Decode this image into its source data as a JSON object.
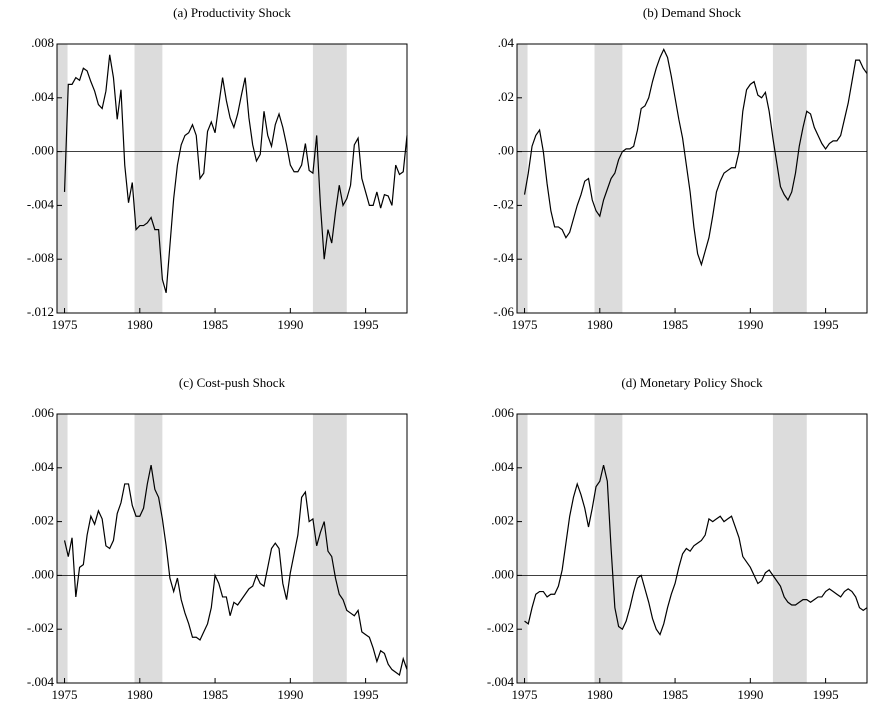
{
  "chart_data": [
    {
      "type": "line",
      "title": "(a) Productivity Shock",
      "color": "#000000",
      "x": [
        1975,
        1975.25,
        1975.5,
        1975.75,
        1976,
        1976.25,
        1976.5,
        1976.75,
        1977,
        1977.25,
        1977.5,
        1977.75,
        1978,
        1978.25,
        1978.5,
        1978.75,
        1979,
        1979.25,
        1979.5,
        1979.75,
        1980,
        1980.25,
        1980.5,
        1980.75,
        1981,
        1981.25,
        1981.5,
        1981.75,
        1982,
        1982.25,
        1982.5,
        1982.75,
        1983,
        1983.25,
        1983.5,
        1983.75,
        1984,
        1984.25,
        1984.5,
        1984.75,
        1985,
        1985.25,
        1985.5,
        1985.75,
        1986,
        1986.25,
        1986.5,
        1986.75,
        1987,
        1987.25,
        1987.5,
        1987.75,
        1988,
        1988.25,
        1988.5,
        1988.75,
        1989,
        1989.25,
        1989.5,
        1989.75,
        1990,
        1990.25,
        1990.5,
        1990.75,
        1991,
        1991.25,
        1991.5,
        1991.75,
        1992,
        1992.25,
        1992.5,
        1992.75,
        1993,
        1993.25,
        1993.5,
        1993.75,
        1994,
        1994.25,
        1994.5,
        1994.75,
        1995,
        1995.25,
        1995.5,
        1995.75,
        1996,
        1996.25,
        1996.5,
        1996.75,
        1997,
        1997.25,
        1997.5,
        1997.75
      ],
      "values": [
        -0.003,
        0.005,
        0.005,
        0.0055,
        0.0053,
        0.0062,
        0.006,
        0.0052,
        0.0045,
        0.0035,
        0.0032,
        0.0045,
        0.0072,
        0.0055,
        0.0024,
        0.0046,
        -0.001,
        -0.0038,
        -0.0023,
        -0.0058,
        -0.0055,
        -0.0055,
        -0.0053,
        -0.0049,
        -0.0058,
        -0.0058,
        -0.0095,
        -0.0105,
        -0.007,
        -0.0035,
        -0.001,
        0.0005,
        0.0012,
        0.0014,
        0.002,
        0.0012,
        -0.002,
        -0.0016,
        0.0015,
        0.0022,
        0.0014,
        0.0035,
        0.0055,
        0.0038,
        0.0025,
        0.0018,
        0.0028,
        0.0042,
        0.0055,
        0.0025,
        0.0005,
        -0.0007,
        -0.0002,
        0.003,
        0.0012,
        0.0004,
        0.002,
        0.0028,
        0.0018,
        0.0005,
        -0.001,
        -0.0015,
        -0.0015,
        -0.001,
        0.0006,
        -0.0014,
        -0.0016,
        0.0012,
        -0.004,
        -0.008,
        -0.0058,
        -0.0068,
        -0.0045,
        -0.0025,
        -0.004,
        -0.0035,
        -0.0025,
        0.0005,
        0.001,
        -0.002,
        -0.003,
        -0.004,
        -0.004,
        -0.003,
        -0.0042,
        -0.0032,
        -0.0033,
        -0.004,
        -0.001,
        -0.0017,
        -0.0015,
        0.0012
      ],
      "xlim": [
        1974.5,
        1997.75
      ],
      "xticks": [
        1975,
        1980,
        1985,
        1990,
        1995
      ],
      "ylim": [
        -0.012,
        0.008
      ],
      "yticks": [
        {
          "value": -0.012,
          "label": "-.012"
        },
        {
          "value": -0.008,
          "label": "-.008"
        },
        {
          "value": -0.004,
          "label": "-.004"
        },
        {
          "value": 0,
          "label": ".000"
        },
        {
          "value": 0.004,
          "label": ".004"
        },
        {
          "value": 0.008,
          "label": ".008"
        }
      ],
      "hline": 0,
      "shade_color": "#dcdcdc",
      "shaded_periods": [
        [
          1974.5,
          1975.2
        ],
        [
          1979.65,
          1981.5
        ],
        [
          1991.5,
          1993.75
        ]
      ]
    },
    {
      "type": "line",
      "title": "(b) Demand Shock",
      "color": "#000000",
      "x": [
        1975,
        1975.25,
        1975.5,
        1975.75,
        1976,
        1976.25,
        1976.5,
        1976.75,
        1977,
        1977.25,
        1977.5,
        1977.75,
        1978,
        1978.25,
        1978.5,
        1978.75,
        1979,
        1979.25,
        1979.5,
        1979.75,
        1980,
        1980.25,
        1980.5,
        1980.75,
        1981,
        1981.25,
        1981.5,
        1981.75,
        1982,
        1982.25,
        1982.5,
        1982.75,
        1983,
        1983.25,
        1983.5,
        1983.75,
        1984,
        1984.25,
        1984.5,
        1984.75,
        1985,
        1985.25,
        1985.5,
        1985.75,
        1986,
        1986.25,
        1986.5,
        1986.75,
        1987,
        1987.25,
        1987.5,
        1987.75,
        1988,
        1988.25,
        1988.5,
        1988.75,
        1989,
        1989.25,
        1989.5,
        1989.75,
        1990,
        1990.25,
        1990.5,
        1990.75,
        1991,
        1991.25,
        1991.5,
        1991.75,
        1992,
        1992.25,
        1992.5,
        1992.75,
        1993,
        1993.25,
        1993.5,
        1993.75,
        1994,
        1994.25,
        1994.5,
        1994.75,
        1995,
        1995.25,
        1995.5,
        1995.75,
        1996,
        1996.25,
        1996.5,
        1996.75,
        1997,
        1997.25,
        1997.5,
        1997.75
      ],
      "values": [
        -0.016,
        -0.008,
        0.002,
        0.006,
        0.008,
        0,
        -0.012,
        -0.022,
        -0.028,
        -0.028,
        -0.029,
        -0.032,
        -0.03,
        -0.025,
        -0.02,
        -0.016,
        -0.011,
        -0.01,
        -0.018,
        -0.022,
        -0.024,
        -0.018,
        -0.014,
        -0.01,
        -0.008,
        -0.003,
        0,
        0.001,
        0.001,
        0.002,
        0.008,
        0.016,
        0.017,
        0.02,
        0.026,
        0.031,
        0.035,
        0.038,
        0.035,
        0.028,
        0.02,
        0.012,
        0.005,
        -0.005,
        -0.015,
        -0.028,
        -0.038,
        -0.042,
        -0.037,
        -0.032,
        -0.024,
        -0.015,
        -0.011,
        -0.008,
        -0.007,
        -0.006,
        -0.006,
        0,
        0.015,
        0.023,
        0.025,
        0.026,
        0.021,
        0.02,
        0.022,
        0.015,
        0.005,
        -0.004,
        -0.013,
        -0.016,
        -0.018,
        -0.015,
        -0.008,
        0.002,
        0.009,
        0.015,
        0.014,
        0.009,
        0.006,
        0.003,
        0.001,
        0.003,
        0.004,
        0.004,
        0.006,
        0.012,
        0.018,
        0.026,
        0.034,
        0.034,
        0.031,
        0.029
      ],
      "xlim": [
        1974.5,
        1997.75
      ],
      "xticks": [
        1975,
        1980,
        1985,
        1990,
        1995
      ],
      "ylim": [
        -0.06,
        0.04
      ],
      "yticks": [
        {
          "value": -0.06,
          "label": "-.06"
        },
        {
          "value": -0.04,
          "label": "-.04"
        },
        {
          "value": -0.02,
          "label": "-.02"
        },
        {
          "value": 0,
          "label": ".00"
        },
        {
          "value": 0.02,
          "label": ".02"
        },
        {
          "value": 0.04,
          "label": ".04"
        }
      ],
      "hline": 0,
      "shade_color": "#dcdcdc",
      "shaded_periods": [
        [
          1974.5,
          1975.2
        ],
        [
          1979.65,
          1981.5
        ],
        [
          1991.5,
          1993.75
        ]
      ]
    },
    {
      "type": "line",
      "title": "(c) Cost-push Shock",
      "color": "#000000",
      "x": [
        1975,
        1975.25,
        1975.5,
        1975.75,
        1976,
        1976.25,
        1976.5,
        1976.75,
        1977,
        1977.25,
        1977.5,
        1977.75,
        1978,
        1978.25,
        1978.5,
        1978.75,
        1979,
        1979.25,
        1979.5,
        1979.75,
        1980,
        1980.25,
        1980.5,
        1980.75,
        1981,
        1981.25,
        1981.5,
        1981.75,
        1982,
        1982.25,
        1982.5,
        1982.75,
        1983,
        1983.25,
        1983.5,
        1983.75,
        1984,
        1984.25,
        1984.5,
        1984.75,
        1985,
        1985.25,
        1985.5,
        1985.75,
        1986,
        1986.25,
        1986.5,
        1986.75,
        1987,
        1987.25,
        1987.5,
        1987.75,
        1988,
        1988.25,
        1988.5,
        1988.75,
        1989,
        1989.25,
        1989.5,
        1989.75,
        1990,
        1990.25,
        1990.5,
        1990.75,
        1991,
        1991.25,
        1991.5,
        1991.75,
        1992,
        1992.25,
        1992.5,
        1992.75,
        1993,
        1993.25,
        1993.5,
        1993.75,
        1994,
        1994.25,
        1994.5,
        1994.75,
        1995,
        1995.25,
        1995.5,
        1995.75,
        1996,
        1996.25,
        1996.5,
        1996.75,
        1997,
        1997.25,
        1997.5,
        1997.75
      ],
      "values": [
        0.0013,
        0.0007,
        0.0014,
        -0.0008,
        0.0003,
        0.0004,
        0.0015,
        0.0022,
        0.0019,
        0.0024,
        0.0021,
        0.0011,
        0.001,
        0.0013,
        0.0023,
        0.0027,
        0.0034,
        0.0034,
        0.0026,
        0.0022,
        0.0022,
        0.0025,
        0.0034,
        0.0041,
        0.0032,
        0.0029,
        0.0021,
        0.0011,
        -0.0001,
        -0.0006,
        -0.0001,
        -0.0009,
        -0.0014,
        -0.0018,
        -0.0023,
        -0.0023,
        -0.0024,
        -0.0021,
        -0.0018,
        -0.0012,
        0,
        -0.0003,
        -0.0008,
        -0.0008,
        -0.0015,
        -0.001,
        -0.0011,
        -0.0009,
        -0.0007,
        -0.0005,
        -0.0004,
        0,
        -0.0003,
        -0.0004,
        0.0003,
        0.001,
        0.0012,
        0.001,
        -0.0003,
        -0.0009,
        0.0001,
        0.0008,
        0.0015,
        0.0029,
        0.0031,
        0.002,
        0.0021,
        0.0011,
        0.0016,
        0.002,
        0.0009,
        0.0007,
        -0.0001,
        -0.0007,
        -0.0009,
        -0.0013,
        -0.0014,
        -0.0015,
        -0.0013,
        -0.0021,
        -0.0022,
        -0.0023,
        -0.0027,
        -0.0032,
        -0.0028,
        -0.0029,
        -0.0033,
        -0.0035,
        -0.0036,
        -0.0037,
        -0.0031,
        -0.0035
      ],
      "xlim": [
        1974.5,
        1997.75
      ],
      "xticks": [
        1975,
        1980,
        1985,
        1990,
        1995
      ],
      "ylim": [
        -0.004,
        0.006
      ],
      "yticks": [
        {
          "value": -0.004,
          "label": "-.004"
        },
        {
          "value": -0.002,
          "label": "-.002"
        },
        {
          "value": 0,
          "label": ".000"
        },
        {
          "value": 0.002,
          "label": ".002"
        },
        {
          "value": 0.004,
          "label": ".004"
        },
        {
          "value": 0.006,
          "label": ".006"
        }
      ],
      "hline": 0,
      "shade_color": "#dcdcdc",
      "shaded_periods": [
        [
          1974.5,
          1975.2
        ],
        [
          1979.65,
          1981.5
        ],
        [
          1991.5,
          1993.75
        ]
      ]
    },
    {
      "type": "line",
      "title": "(d) Monetary Policy Shock",
      "color": "#000000",
      "x": [
        1975,
        1975.25,
        1975.5,
        1975.75,
        1976,
        1976.25,
        1976.5,
        1976.75,
        1977,
        1977.25,
        1977.5,
        1977.75,
        1978,
        1978.25,
        1978.5,
        1978.75,
        1979,
        1979.25,
        1979.5,
        1979.75,
        1980,
        1980.25,
        1980.5,
        1980.75,
        1981,
        1981.25,
        1981.5,
        1981.75,
        1982,
        1982.25,
        1982.5,
        1982.75,
        1983,
        1983.25,
        1983.5,
        1983.75,
        1984,
        1984.25,
        1984.5,
        1984.75,
        1985,
        1985.25,
        1985.5,
        1985.75,
        1986,
        1986.25,
        1986.5,
        1986.75,
        1987,
        1987.25,
        1987.5,
        1987.75,
        1988,
        1988.25,
        1988.5,
        1988.75,
        1989,
        1989.25,
        1989.5,
        1989.75,
        1990,
        1990.25,
        1990.5,
        1990.75,
        1991,
        1991.25,
        1991.5,
        1991.75,
        1992,
        1992.25,
        1992.5,
        1992.75,
        1993,
        1993.25,
        1993.5,
        1993.75,
        1994,
        1994.25,
        1994.5,
        1994.75,
        1995,
        1995.25,
        1995.5,
        1995.75,
        1996,
        1996.25,
        1996.5,
        1996.75,
        1997,
        1997.25,
        1997.5,
        1997.75
      ],
      "values": [
        -0.0017,
        -0.0018,
        -0.0012,
        -0.0007,
        -0.0006,
        -0.0006,
        -0.0008,
        -0.0007,
        -0.0007,
        -0.0004,
        0.0002,
        0.0012,
        0.0022,
        0.0029,
        0.0034,
        0.003,
        0.0025,
        0.0018,
        0.0025,
        0.0033,
        0.0035,
        0.0041,
        0.0035,
        0.001,
        -0.0012,
        -0.0019,
        -0.002,
        -0.0017,
        -0.0012,
        -0.0006,
        -0.0001,
        0,
        -0.0005,
        -0.001,
        -0.0016,
        -0.002,
        -0.0022,
        -0.0018,
        -0.0012,
        -0.0007,
        -0.0003,
        0.0003,
        0.0008,
        0.001,
        0.0009,
        0.0011,
        0.0012,
        0.0013,
        0.0015,
        0.0021,
        0.002,
        0.0021,
        0.0022,
        0.002,
        0.0021,
        0.0022,
        0.0018,
        0.0014,
        0.0007,
        0.0005,
        0.0003,
        0,
        -0.0003,
        -0.0002,
        0.0001,
        0.0002,
        0,
        -0.0002,
        -0.0004,
        -0.0008,
        -0.001,
        -0.0011,
        -0.0011,
        -0.001,
        -0.0009,
        -0.0009,
        -0.001,
        -0.0009,
        -0.0008,
        -0.0008,
        -0.0006,
        -0.0005,
        -0.0006,
        -0.0007,
        -0.0008,
        -0.0006,
        -0.0005,
        -0.0006,
        -0.0008,
        -0.0012,
        -0.0013,
        -0.0012
      ],
      "xlim": [
        1974.5,
        1997.75
      ],
      "xticks": [
        1975,
        1980,
        1985,
        1990,
        1995
      ],
      "ylim": [
        -0.004,
        0.006
      ],
      "yticks": [
        {
          "value": -0.004,
          "label": "-.004"
        },
        {
          "value": -0.002,
          "label": "-.002"
        },
        {
          "value": 0,
          "label": ".000"
        },
        {
          "value": 0.002,
          "label": ".002"
        },
        {
          "value": 0.004,
          "label": ".004"
        },
        {
          "value": 0.006,
          "label": ".006"
        }
      ],
      "hline": 0,
      "shade_color": "#dcdcdc",
      "shaded_periods": [
        [
          1974.5,
          1975.2
        ],
        [
          1979.65,
          1981.5
        ],
        [
          1991.5,
          1993.75
        ]
      ]
    }
  ]
}
